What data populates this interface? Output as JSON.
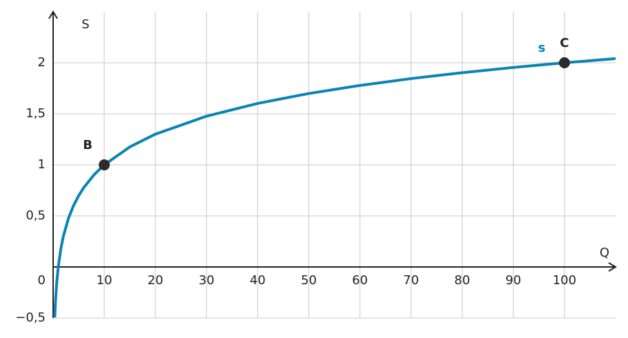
{
  "chart_data": {
    "type": "line",
    "x_label": "Q",
    "y_label": "S",
    "xlim": [
      0,
      110
    ],
    "ylim": [
      -0.5,
      2.5
    ],
    "xticks": [
      10,
      20,
      30,
      40,
      50,
      60,
      70,
      80,
      90,
      100
    ],
    "yticks": [
      {
        "value": -0.5,
        "label": "−0,5"
      },
      0,
      {
        "value": 0.5,
        "label": "0,5"
      },
      1,
      {
        "value": 1.5,
        "label": "1,5"
      },
      2
    ],
    "grid": true,
    "series": [
      {
        "name": "s",
        "color": "#0a84b4",
        "x": [
          0.32,
          0.4,
          0.5,
          0.7,
          1,
          1.5,
          2,
          3,
          4,
          5,
          6,
          8,
          10,
          15,
          20,
          30,
          40,
          50,
          60,
          70,
          80,
          90,
          100,
          110
        ],
        "values": [
          -0.495,
          -0.398,
          -0.301,
          -0.155,
          0,
          0.176,
          0.301,
          0.477,
          0.602,
          0.699,
          0.778,
          0.903,
          1,
          1.176,
          1.301,
          1.477,
          1.602,
          1.699,
          1.778,
          1.845,
          1.903,
          1.954,
          2,
          2.041
        ]
      }
    ],
    "points": [
      {
        "label": "B",
        "x": 10,
        "y": 1
      },
      {
        "label": "C",
        "x": 100,
        "y": 2
      }
    ],
    "point_color": "#2b2b2b"
  }
}
